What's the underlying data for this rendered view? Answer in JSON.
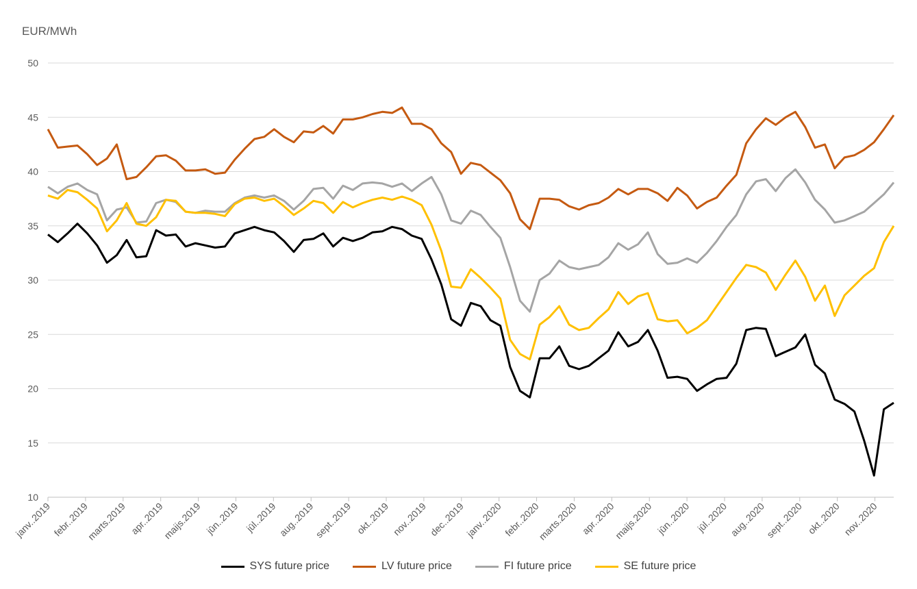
{
  "chart_data": {
    "type": "line",
    "ylabel": "EUR/MWh",
    "ylim": [
      10,
      50
    ],
    "yticks": [
      10,
      15,
      20,
      25,
      30,
      35,
      40,
      45,
      50
    ],
    "xlabels": [
      "janv..2019",
      "febr..2019",
      "marts.2019",
      "apr..2019",
      "maijs.2019",
      "jūn..2019",
      "jūl..2019",
      "aug..2019",
      "sept..2019",
      "okt..2019",
      "nov..2019",
      "dec..2019",
      "janv..2020",
      "febr..2020",
      "marts.2020",
      "apr..2020",
      "maijs.2020",
      "jūn..2020",
      "jūl..2020",
      "aug..2020",
      "sept..2020",
      "okt..2020",
      "nov..2020"
    ],
    "legend_position": "bottom",
    "grid": "horizontal",
    "series": [
      {
        "name": "SYS future price",
        "color": "#000000",
        "values": [
          34.2,
          33.5,
          34.3,
          35.2,
          34.3,
          33.2,
          31.6,
          32.3,
          33.7,
          32.1,
          32.2,
          34.6,
          34.1,
          34.2,
          33.1,
          33.4,
          33.2,
          33.0,
          33.1,
          34.3,
          34.6,
          34.9,
          34.6,
          34.4,
          33.6,
          32.6,
          33.7,
          33.8,
          34.3,
          33.1,
          33.9,
          33.6,
          33.9,
          34.4,
          34.5,
          34.9,
          34.7,
          34.1,
          33.8,
          31.9,
          29.6,
          26.4,
          25.8,
          27.9,
          27.6,
          26.3,
          25.8,
          22.0,
          19.8,
          19.2,
          22.8,
          22.8,
          23.9,
          22.1,
          21.8,
          22.1,
          22.8,
          23.5,
          25.2,
          23.9,
          24.3,
          25.4,
          23.5,
          21.0,
          21.1,
          20.9,
          19.8,
          20.4,
          20.9,
          21.0,
          22.3,
          25.4,
          25.6,
          25.5,
          23.0,
          23.4,
          23.8,
          25.0,
          22.2,
          21.4,
          19.0,
          18.6,
          17.9,
          15.2,
          12.0,
          18.1,
          18.7
        ]
      },
      {
        "name": "LV future price",
        "color": "#C55A11",
        "values": [
          43.9,
          42.2,
          42.3,
          42.4,
          41.6,
          40.6,
          41.2,
          42.5,
          39.3,
          39.5,
          40.4,
          41.4,
          41.5,
          41.0,
          40.1,
          40.1,
          40.2,
          39.8,
          39.9,
          41.1,
          42.1,
          43.0,
          43.2,
          43.9,
          43.2,
          42.7,
          43.7,
          43.6,
          44.2,
          43.5,
          44.8,
          44.8,
          45.0,
          45.3,
          45.5,
          45.4,
          45.9,
          44.4,
          44.4,
          43.9,
          42.6,
          41.8,
          39.8,
          40.8,
          40.6,
          39.9,
          39.2,
          38.0,
          35.6,
          34.7,
          37.5,
          37.5,
          37.4,
          36.8,
          36.5,
          36.9,
          37.1,
          37.6,
          38.4,
          37.9,
          38.4,
          38.4,
          38.0,
          37.3,
          38.5,
          37.8,
          36.6,
          37.2,
          37.6,
          38.7,
          39.7,
          42.6,
          43.9,
          44.9,
          44.3,
          45.0,
          45.5,
          44.1,
          42.2,
          42.5,
          40.3,
          41.3,
          41.5,
          42.0,
          42.7,
          43.9,
          45.2
        ]
      },
      {
        "name": "FI future price",
        "color": "#A5A5A5",
        "values": [
          38.6,
          38.0,
          38.6,
          38.9,
          38.3,
          37.9,
          35.5,
          36.5,
          36.7,
          35.3,
          35.4,
          37.1,
          37.4,
          37.2,
          36.3,
          36.2,
          36.4,
          36.3,
          36.3,
          37.1,
          37.6,
          37.8,
          37.6,
          37.8,
          37.3,
          36.5,
          37.3,
          38.4,
          38.5,
          37.5,
          38.7,
          38.3,
          38.9,
          39.0,
          38.9,
          38.6,
          38.9,
          38.2,
          38.9,
          39.5,
          37.9,
          35.5,
          35.2,
          36.4,
          36.0,
          34.9,
          33.9,
          31.2,
          28.1,
          27.1,
          30.0,
          30.6,
          31.8,
          31.2,
          31.0,
          31.2,
          31.4,
          32.1,
          33.4,
          32.8,
          33.3,
          34.4,
          32.4,
          31.5,
          31.6,
          32.0,
          31.6,
          32.5,
          33.6,
          34.9,
          36.0,
          37.9,
          39.1,
          39.3,
          38.2,
          39.4,
          40.2,
          39.0,
          37.4,
          36.5,
          35.3,
          35.5,
          35.9,
          36.3,
          37.1,
          37.9,
          39.0
        ]
      },
      {
        "name": "SE future price",
        "color": "#FFC000",
        "values": [
          37.8,
          37.5,
          38.3,
          38.1,
          37.4,
          36.6,
          34.5,
          35.5,
          37.1,
          35.2,
          35.0,
          35.8,
          37.4,
          37.3,
          36.3,
          36.2,
          36.2,
          36.1,
          35.9,
          37.0,
          37.5,
          37.6,
          37.3,
          37.5,
          36.8,
          36.0,
          36.6,
          37.3,
          37.1,
          36.2,
          37.2,
          36.7,
          37.1,
          37.4,
          37.6,
          37.4,
          37.7,
          37.4,
          36.9,
          35.1,
          32.7,
          29.4,
          29.3,
          31.0,
          30.2,
          29.3,
          28.3,
          24.5,
          23.2,
          22.7,
          25.9,
          26.6,
          27.6,
          25.9,
          25.4,
          25.6,
          26.5,
          27.3,
          28.9,
          27.8,
          28.5,
          28.8,
          26.4,
          26.2,
          26.3,
          25.1,
          25.6,
          26.3,
          27.6,
          28.9,
          30.2,
          31.4,
          31.2,
          30.7,
          29.1,
          30.5,
          31.8,
          30.3,
          28.1,
          29.5,
          26.7,
          28.6,
          29.5,
          30.4,
          31.1,
          33.5,
          35.0
        ]
      }
    ]
  }
}
